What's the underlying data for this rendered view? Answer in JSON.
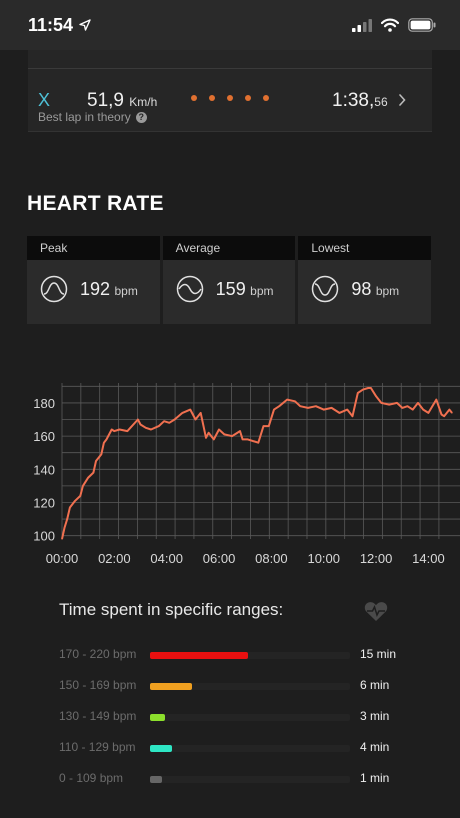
{
  "status_bar": {
    "time": "11:54"
  },
  "best_lap": {
    "marker": "X",
    "speed_value": "51,9",
    "speed_unit": "Km/h",
    "time_main": "1:38,",
    "time_ms": "56",
    "note": "Best lap in theory"
  },
  "heart_rate": {
    "title": "HEART RATE",
    "cards": [
      {
        "label": "Peak",
        "value": "192",
        "unit": "bpm",
        "icon": "peak-wave-icon"
      },
      {
        "label": "Average",
        "value": "159",
        "unit": "bpm",
        "icon": "average-wave-icon"
      },
      {
        "label": "Lowest",
        "value": "98",
        "unit": "bpm",
        "icon": "lowest-wave-icon"
      }
    ]
  },
  "chart_data": {
    "type": "line",
    "title": "",
    "xlabel": "",
    "ylabel": "",
    "x_ticks": [
      "00:00",
      "02:00",
      "04:00",
      "06:00",
      "08:00",
      "10:00",
      "12:00",
      "14:00"
    ],
    "y_ticks": [
      "100",
      "120",
      "140",
      "160",
      "180"
    ],
    "ylim": [
      98,
      192
    ],
    "xlim_minutes": [
      0,
      14.9
    ],
    "grid": true,
    "line_color": "#f07050",
    "series": [
      {
        "x": [
          0,
          0.1,
          0.2,
          0.3,
          0.5,
          0.7,
          0.8,
          1,
          1.2,
          1.3,
          1.5,
          1.6,
          1.7,
          1.9,
          2,
          2.2,
          2.5,
          2.9,
          3,
          3.2,
          3.4,
          3.7,
          3.9,
          4.1,
          4.3,
          4.6,
          4.9,
          5.1,
          5.3,
          5.5,
          5.6,
          5.8,
          6,
          6.2,
          6.5,
          6.8,
          6.9,
          7.1,
          7.5,
          7.7,
          7.9,
          8.1,
          8.3,
          8.6,
          8.9,
          9.1,
          9.4,
          9.7,
          10,
          10.3,
          10.6,
          10.9,
          11.1,
          11.3,
          11.5,
          11.7,
          11.8,
          12,
          12.2,
          12.5,
          12.8,
          13,
          13.2,
          13.4,
          13.6,
          13.8,
          14,
          14.3,
          14.5,
          14.6,
          14.8,
          14.9
        ],
        "y": [
          98,
          105,
          110,
          117,
          121,
          124,
          130,
          135,
          138,
          145,
          149,
          156,
          158,
          164,
          163,
          164,
          163,
          170,
          167,
          165,
          164,
          166,
          169,
          168,
          170,
          174,
          176,
          170,
          174,
          159,
          162,
          158,
          164,
          161,
          160,
          163,
          158,
          158,
          156,
          166,
          166,
          176,
          178,
          182,
          181,
          178,
          177,
          178,
          176,
          177,
          174,
          176,
          172,
          186,
          188,
          189,
          189,
          184,
          180,
          179,
          180,
          177,
          178,
          176,
          180,
          176,
          174,
          182,
          173,
          172,
          176,
          174
        ]
      }
    ]
  },
  "ranges": {
    "title": "Time spent in specific ranges:",
    "rows": [
      {
        "label": "170 - 220 bpm",
        "value": "15 min",
        "fraction": 0.49,
        "color": "#e81010"
      },
      {
        "label": "150 - 169 bpm",
        "value": "6 min",
        "fraction": 0.21,
        "color": "#f0a020"
      },
      {
        "label": "130 - 149 bpm",
        "value": "3 min",
        "fraction": 0.075,
        "color": "#8ce02c"
      },
      {
        "label": "110 - 129 bpm",
        "value": "4 min",
        "fraction": 0.11,
        "color": "#2ee6c4"
      },
      {
        "label": "0 - 109 bpm",
        "value": "1 min",
        "fraction": 0.06,
        "color": "#666666"
      }
    ]
  }
}
